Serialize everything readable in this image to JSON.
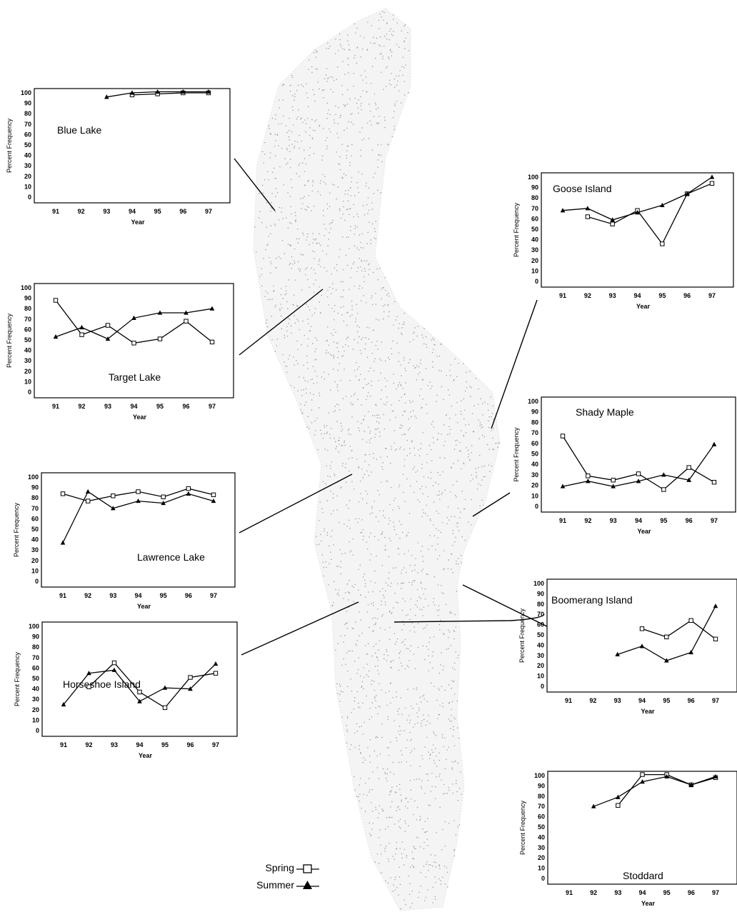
{
  "legend": {
    "spring_label": "Spring",
    "summer_label": "Summer"
  },
  "chart_data": [
    {
      "type": "line",
      "title": "Blue Lake",
      "xlabel": "Year",
      "ylabel": "Percent Frequency",
      "categories": [
        "91",
        "92",
        "93",
        "94",
        "95",
        "96",
        "97"
      ],
      "ylim": [
        0,
        100
      ],
      "yticks": [
        "0",
        "10",
        "20",
        "30",
        "40",
        "50",
        "60",
        "70",
        "80",
        "90",
        "100"
      ],
      "series": [
        {
          "name": "Spring",
          "marker": "square",
          "values": [
            null,
            null,
            null,
            98,
            99,
            100,
            100
          ]
        },
        {
          "name": "Summer",
          "marker": "triangle",
          "values": [
            null,
            null,
            96,
            100,
            101,
            101,
            101
          ]
        }
      ]
    },
    {
      "type": "line",
      "title": "Target Lake",
      "xlabel": "Year",
      "ylabel": "Percent Frequency",
      "categories": [
        "91",
        "92",
        "93",
        "94",
        "95",
        "96",
        "97"
      ],
      "ylim": [
        0,
        100
      ],
      "yticks": [
        "0",
        "10",
        "20",
        "30",
        "40",
        "50",
        "60",
        "70",
        "80",
        "90",
        "100"
      ],
      "series": [
        {
          "name": "Spring",
          "marker": "square",
          "values": [
            88,
            55,
            64,
            47,
            51,
            68,
            48
          ]
        },
        {
          "name": "Summer",
          "marker": "triangle",
          "values": [
            53,
            62,
            51,
            71,
            76,
            76,
            80
          ]
        }
      ]
    },
    {
      "type": "line",
      "title": "Lawrence Lake",
      "xlabel": "Year",
      "ylabel": "Percent Frequency",
      "categories": [
        "91",
        "92",
        "93",
        "94",
        "95",
        "96",
        "97"
      ],
      "ylim": [
        0,
        100
      ],
      "yticks": [
        "0",
        "10",
        "20",
        "30",
        "40",
        "50",
        "60",
        "70",
        "80",
        "90",
        "100"
      ],
      "series": [
        {
          "name": "Spring",
          "marker": "square",
          "values": [
            84,
            77,
            82,
            86,
            81,
            89,
            83
          ]
        },
        {
          "name": "Summer",
          "marker": "triangle",
          "values": [
            37,
            86,
            70,
            77,
            75,
            84,
            77
          ]
        }
      ]
    },
    {
      "type": "line",
      "title": "Horseshoe Island",
      "xlabel": "Year",
      "ylabel": "Percent Frequency",
      "categories": [
        "91",
        "92",
        "93",
        "94",
        "95",
        "96",
        "97"
      ],
      "ylim": [
        0,
        100
      ],
      "yticks": [
        "0",
        "10",
        "20",
        "30",
        "40",
        "50",
        "60",
        "70",
        "80",
        "90",
        "100"
      ],
      "series": [
        {
          "name": "Spring",
          "marker": "square",
          "values": [
            null,
            42,
            65,
            37,
            22,
            51,
            55
          ]
        },
        {
          "name": "Summer",
          "marker": "triangle",
          "values": [
            25,
            55,
            58,
            28,
            41,
            40,
            64
          ]
        }
      ]
    },
    {
      "type": "line",
      "title": "Goose Island",
      "xlabel": "Year",
      "ylabel": "Percent Frequency",
      "categories": [
        "91",
        "92",
        "93",
        "94",
        "95",
        "96",
        "97"
      ],
      "ylim": [
        0,
        100
      ],
      "yticks": [
        "0",
        "10",
        "20",
        "30",
        "40",
        "50",
        "60",
        "70",
        "80",
        "90",
        "100"
      ],
      "series": [
        {
          "name": "Spring",
          "marker": "square",
          "values": [
            null,
            62,
            55,
            68,
            36,
            84,
            94
          ]
        },
        {
          "name": "Summer",
          "marker": "triangle",
          "values": [
            68,
            70,
            59,
            66,
            73,
            84,
            100
          ]
        }
      ]
    },
    {
      "type": "line",
      "title": "Shady Maple",
      "xlabel": "Year",
      "ylabel": "Percent Frequency",
      "categories": [
        "91",
        "92",
        "93",
        "94",
        "95",
        "96",
        "97"
      ],
      "ylim": [
        0,
        100
      ],
      "yticks": [
        "0",
        "10",
        "20",
        "30",
        "40",
        "50",
        "60",
        "70",
        "80",
        "90",
        "100"
      ],
      "series": [
        {
          "name": "Spring",
          "marker": "square",
          "values": [
            67,
            29,
            25,
            31,
            16,
            37,
            23
          ]
        },
        {
          "name": "Summer",
          "marker": "triangle",
          "values": [
            19,
            24,
            19,
            24,
            30,
            25,
            59
          ]
        }
      ]
    },
    {
      "type": "line",
      "title": "Boomerang Island",
      "xlabel": "Year",
      "ylabel": "Percent Frequency",
      "categories": [
        "91",
        "92",
        "93",
        "94",
        "95",
        "96",
        "97"
      ],
      "ylim": [
        0,
        100
      ],
      "yticks": [
        "0",
        "10",
        "20",
        "30",
        "40",
        "50",
        "60",
        "70",
        "80",
        "90",
        "100"
      ],
      "series": [
        {
          "name": "Spring",
          "marker": "square",
          "values": [
            null,
            null,
            null,
            56,
            48,
            64,
            46
          ]
        },
        {
          "name": "Summer",
          "marker": "triangle",
          "values": [
            null,
            null,
            31,
            39,
            25,
            33,
            78
          ]
        }
      ]
    },
    {
      "type": "line",
      "title": "Stoddard",
      "xlabel": "Year",
      "ylabel": "Percent Frequency",
      "categories": [
        "91",
        "92",
        "93",
        "94",
        "95",
        "96",
        "97"
      ],
      "ylim": [
        0,
        100
      ],
      "yticks": [
        "0",
        "10",
        "20",
        "30",
        "40",
        "50",
        "60",
        "70",
        "80",
        "90",
        "100"
      ],
      "series": [
        {
          "name": "Spring",
          "marker": "square",
          "values": [
            null,
            null,
            71,
            101,
            101,
            91,
            98
          ]
        },
        {
          "name": "Summer",
          "marker": "triangle",
          "values": [
            null,
            70,
            79,
            94,
            99,
            91,
            99
          ]
        }
      ]
    }
  ]
}
